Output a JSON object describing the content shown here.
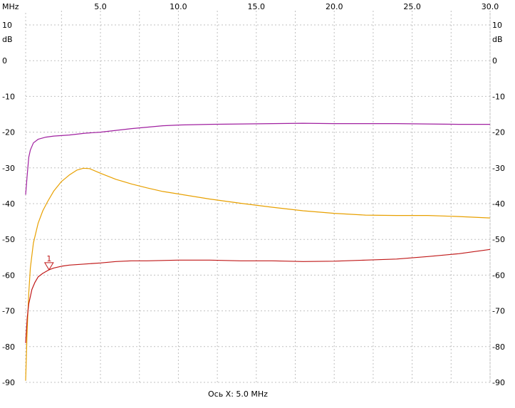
{
  "chart_data": {
    "type": "line",
    "x_unit": "MHz",
    "y_unit": "dB",
    "xlim": [
      0.2,
      30.0
    ],
    "ylim": [
      -90,
      10
    ],
    "x_ticks": [
      5.0,
      10.0,
      15.0,
      20.0,
      25.0,
      30.0
    ],
    "x_tick_labels": [
      "5.0",
      "10.0",
      "15.0",
      "20.0",
      "25.0",
      "30.0"
    ],
    "y_ticks": [
      10,
      0,
      -10,
      -20,
      -30,
      -40,
      -50,
      -60,
      -70,
      -80,
      -90
    ],
    "y_tick_labels": [
      "10",
      "0",
      "-10",
      "-20",
      "-30",
      "-40",
      "-50",
      "-60",
      "-70",
      "-80",
      "-90"
    ],
    "grid": true,
    "footer": "Ось X: 5.0 MHz",
    "series": [
      {
        "color": "#a020a0",
        "points": [
          [
            0.2,
            -37.5
          ],
          [
            0.3,
            -32
          ],
          [
            0.4,
            -27
          ],
          [
            0.5,
            -25
          ],
          [
            0.7,
            -23
          ],
          [
            1.0,
            -22
          ],
          [
            1.5,
            -21.4
          ],
          [
            2,
            -21.1
          ],
          [
            3,
            -20.8
          ],
          [
            4,
            -20.3
          ],
          [
            5,
            -20.0
          ],
          [
            6,
            -19.5
          ],
          [
            7,
            -19.0
          ],
          [
            8,
            -18.6
          ],
          [
            9,
            -18.2
          ],
          [
            10,
            -18.0
          ],
          [
            12,
            -17.8
          ],
          [
            14,
            -17.7
          ],
          [
            16,
            -17.6
          ],
          [
            18,
            -17.5
          ],
          [
            20,
            -17.6
          ],
          [
            22,
            -17.6
          ],
          [
            24,
            -17.6
          ],
          [
            26,
            -17.7
          ],
          [
            28,
            -17.8
          ],
          [
            30,
            -17.8
          ]
        ]
      },
      {
        "color": "#e8a000",
        "points": [
          [
            0.2,
            -89.5
          ],
          [
            0.3,
            -75
          ],
          [
            0.4,
            -65
          ],
          [
            0.5,
            -58
          ],
          [
            0.7,
            -51
          ],
          [
            1.0,
            -45.5
          ],
          [
            1.3,
            -42
          ],
          [
            1.6,
            -39.5
          ],
          [
            2.0,
            -36.5
          ],
          [
            2.5,
            -33.8
          ],
          [
            3.0,
            -32
          ],
          [
            3.5,
            -30.6
          ],
          [
            3.9,
            -30.1
          ],
          [
            4.3,
            -30.2
          ],
          [
            5,
            -31.5
          ],
          [
            6,
            -33.2
          ],
          [
            7,
            -34.5
          ],
          [
            8,
            -35.6
          ],
          [
            9,
            -36.6
          ],
          [
            10,
            -37.3
          ],
          [
            12,
            -38.7
          ],
          [
            14,
            -39.9
          ],
          [
            16,
            -41.0
          ],
          [
            18,
            -42.0
          ],
          [
            20,
            -42.7
          ],
          [
            22,
            -43.2
          ],
          [
            24,
            -43.3
          ],
          [
            26,
            -43.3
          ],
          [
            28,
            -43.6
          ],
          [
            30,
            -44.0
          ]
        ]
      },
      {
        "color": "#c01818",
        "points": [
          [
            0.2,
            -79
          ],
          [
            0.3,
            -72
          ],
          [
            0.4,
            -68
          ],
          [
            0.6,
            -64
          ],
          [
            0.8,
            -62
          ],
          [
            1.0,
            -60.5
          ],
          [
            1.3,
            -59.5
          ],
          [
            1.7,
            -58.5
          ],
          [
            2.0,
            -58.0
          ],
          [
            2.5,
            -57.5
          ],
          [
            3,
            -57.2
          ],
          [
            4,
            -56.9
          ],
          [
            5,
            -56.6
          ],
          [
            6,
            -56.2
          ],
          [
            7,
            -56.0
          ],
          [
            8,
            -56.0
          ],
          [
            10,
            -55.8
          ],
          [
            12,
            -55.8
          ],
          [
            14,
            -56.0
          ],
          [
            16,
            -56.0
          ],
          [
            18,
            -56.2
          ],
          [
            20,
            -56.1
          ],
          [
            22,
            -55.8
          ],
          [
            24,
            -55.5
          ],
          [
            26,
            -54.8
          ],
          [
            28,
            -54.0
          ],
          [
            30,
            -52.8
          ]
        ]
      }
    ],
    "markers": [
      {
        "label": "1",
        "x": 1.7,
        "y": -58.5,
        "color": "#c01818"
      }
    ]
  }
}
